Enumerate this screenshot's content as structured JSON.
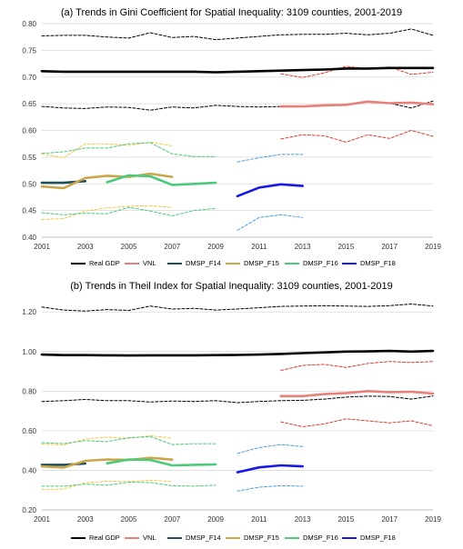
{
  "chart_data": [
    {
      "type": "line",
      "title": "(a) Trends in Gini Coefficient for Spatial Inequality: 3109 counties, 2001-2019",
      "xlabel": "",
      "ylabel": "",
      "x_ticks": [
        "2001",
        "2003",
        "2005",
        "2007",
        "2009",
        "2011",
        "2013",
        "2015",
        "2017",
        "2019"
      ],
      "y_ticks": [
        "0.40",
        "0.45",
        "0.50",
        "0.55",
        "0.60",
        "0.65",
        "0.70",
        "0.75",
        "0.80"
      ],
      "xlim": [
        2001,
        2019
      ],
      "ylim": [
        0.4,
        0.8
      ],
      "grid": "horizontal",
      "legend_position": "bottom",
      "series": [
        {
          "name": "Real GDP",
          "color": "#000000",
          "style": "solid",
          "x": [
            2001,
            2002,
            2003,
            2004,
            2005,
            2006,
            2007,
            2008,
            2009,
            2010,
            2011,
            2012,
            2013,
            2014,
            2015,
            2016,
            2017,
            2018,
            2019
          ],
          "values": [
            0.711,
            0.71,
            0.71,
            0.71,
            0.71,
            0.71,
            0.71,
            0.71,
            0.709,
            0.71,
            0.711,
            0.712,
            0.713,
            0.714,
            0.716,
            0.716,
            0.717,
            0.717,
            0.717
          ]
        },
        {
          "name": "Real GDP upper band",
          "color": "#000000",
          "style": "dashed",
          "x": [
            2001,
            2002,
            2003,
            2004,
            2005,
            2006,
            2007,
            2008,
            2009,
            2010,
            2011,
            2012,
            2013,
            2014,
            2015,
            2016,
            2017,
            2018,
            2019
          ],
          "values": [
            0.777,
            0.778,
            0.778,
            0.775,
            0.773,
            0.783,
            0.774,
            0.776,
            0.77,
            0.773,
            0.776,
            0.779,
            0.78,
            0.78,
            0.782,
            0.779,
            0.782,
            0.79,
            0.778
          ]
        },
        {
          "name": "Real GDP lower band",
          "color": "#000000",
          "style": "dashed",
          "x": [
            2001,
            2002,
            2003,
            2004,
            2005,
            2006,
            2007,
            2008,
            2009,
            2010,
            2011,
            2012,
            2013,
            2014,
            2015,
            2016,
            2017,
            2018,
            2019
          ],
          "values": [
            0.645,
            0.642,
            0.641,
            0.644,
            0.643,
            0.638,
            0.644,
            0.642,
            0.647,
            0.645,
            0.644,
            0.645,
            0.646,
            0.646,
            0.649,
            0.653,
            0.651,
            0.642,
            0.655
          ]
        },
        {
          "name": "VNL",
          "color": "#e8807a",
          "style": "solid",
          "x": [
            2012,
            2013,
            2014,
            2015,
            2016,
            2017,
            2018,
            2019
          ],
          "values": [
            0.645,
            0.645,
            0.647,
            0.648,
            0.654,
            0.651,
            0.652,
            0.649
          ]
        },
        {
          "name": "VNL upper band",
          "color": "#e03b2e",
          "style": "dashed",
          "x": [
            2012,
            2013,
            2014,
            2015,
            2016,
            2017,
            2018,
            2019
          ],
          "values": [
            0.706,
            0.699,
            0.708,
            0.72,
            0.716,
            0.719,
            0.705,
            0.709
          ]
        },
        {
          "name": "VNL lower band",
          "color": "#e03b2e",
          "style": "dashed",
          "x": [
            2012,
            2013,
            2014,
            2015,
            2016,
            2017,
            2018,
            2019
          ],
          "values": [
            0.584,
            0.592,
            0.59,
            0.578,
            0.592,
            0.585,
            0.6,
            0.589
          ]
        },
        {
          "name": "DMSP_F14",
          "color": "#1f4e5c",
          "style": "solid",
          "x": [
            2001,
            2002,
            2003
          ],
          "values": [
            0.502,
            0.502,
            0.505
          ]
        },
        {
          "name": "DMSP_F15",
          "color": "#c9a649",
          "style": "solid",
          "x": [
            2001,
            2002,
            2003,
            2004,
            2005,
            2006,
            2007
          ],
          "values": [
            0.495,
            0.492,
            0.511,
            0.515,
            0.513,
            0.519,
            0.513
          ]
        },
        {
          "name": "DMSP_F15 upper band",
          "color": "#f2c94c",
          "style": "dashed",
          "x": [
            2001,
            2002,
            2003,
            2004,
            2005,
            2006,
            2007
          ],
          "values": [
            0.556,
            0.549,
            0.575,
            0.575,
            0.572,
            0.578,
            0.571
          ]
        },
        {
          "name": "DMSP_F15 lower band",
          "color": "#f2c94c",
          "style": "dashed",
          "x": [
            2001,
            2002,
            2003,
            2004,
            2005,
            2006,
            2007
          ],
          "values": [
            0.433,
            0.435,
            0.449,
            0.455,
            0.458,
            0.459,
            0.456
          ]
        },
        {
          "name": "DMSP_F16",
          "color": "#4cc97a",
          "style": "solid",
          "x": [
            2004,
            2005,
            2006,
            2007,
            2008,
            2009
          ],
          "values": [
            0.503,
            0.516,
            0.514,
            0.498,
            0.5,
            0.502
          ]
        },
        {
          "name": "DMSP_F16 upper band",
          "color": "#4cc97a",
          "style": "dashed",
          "x": [
            2001,
            2002,
            2003,
            2004,
            2005,
            2006,
            2007,
            2008,
            2009
          ],
          "values": [
            0.557,
            0.56,
            0.567,
            0.567,
            0.575,
            0.577,
            0.556,
            0.551,
            0.551
          ]
        },
        {
          "name": "DMSP_F16 lower band",
          "color": "#4cc97a",
          "style": "dashed",
          "x": [
            2001,
            2002,
            2003,
            2004,
            2005,
            2006,
            2007,
            2008,
            2009
          ],
          "values": [
            0.446,
            0.442,
            0.445,
            0.444,
            0.456,
            0.449,
            0.44,
            0.45,
            0.454
          ]
        },
        {
          "name": "DMSP_F18",
          "color": "#1717e6",
          "style": "solid",
          "x": [
            2010,
            2011,
            2012,
            2013
          ],
          "values": [
            0.477,
            0.493,
            0.499,
            0.496
          ]
        },
        {
          "name": "DMSP_F18 upper band",
          "color": "#4a9be8",
          "style": "dashed",
          "x": [
            2010,
            2011,
            2012,
            2013
          ],
          "values": [
            0.541,
            0.549,
            0.555,
            0.555
          ]
        },
        {
          "name": "DMSP_F18 lower band",
          "color": "#4a9be8",
          "style": "dashed",
          "x": [
            2010,
            2011,
            2012,
            2013
          ],
          "values": [
            0.413,
            0.437,
            0.442,
            0.437
          ]
        }
      ]
    },
    {
      "type": "line",
      "title": "(b) Trends in Theil Index for Spatial Inequality: 3109 counties, 2001-2019",
      "xlabel": "",
      "ylabel": "",
      "x_ticks": [
        "2001",
        "2003",
        "2005",
        "2007",
        "2009",
        "2011",
        "2013",
        "2015",
        "2017",
        "2019"
      ],
      "y_ticks": [
        "0.20",
        "0.40",
        "0.60",
        "0.80",
        "1.00",
        "1.20"
      ],
      "xlim": [
        2001,
        2019
      ],
      "ylim": [
        0.2,
        1.27
      ],
      "grid": "horizontal",
      "legend_position": "bottom",
      "series": [
        {
          "name": "Real GDP",
          "color": "#000000",
          "style": "solid",
          "x": [
            2001,
            2002,
            2003,
            2004,
            2005,
            2006,
            2007,
            2008,
            2009,
            2010,
            2011,
            2012,
            2013,
            2014,
            2015,
            2016,
            2017,
            2018,
            2019
          ],
          "values": [
            0.985,
            0.982,
            0.982,
            0.981,
            0.98,
            0.981,
            0.981,
            0.981,
            0.982,
            0.983,
            0.985,
            0.988,
            0.992,
            0.996,
            1.0,
            1.001,
            1.003,
            1.0,
            1.003
          ]
        },
        {
          "name": "Real GDP upper band",
          "color": "#000000",
          "style": "dashed",
          "x": [
            2001,
            2002,
            2003,
            2004,
            2005,
            2006,
            2007,
            2008,
            2009,
            2010,
            2011,
            2012,
            2013,
            2014,
            2015,
            2016,
            2017,
            2018,
            2019
          ],
          "values": [
            1.225,
            1.21,
            1.205,
            1.212,
            1.208,
            1.23,
            1.215,
            1.218,
            1.21,
            1.215,
            1.222,
            1.228,
            1.23,
            1.232,
            1.23,
            1.228,
            1.232,
            1.24,
            1.23
          ]
        },
        {
          "name": "Real GDP lower band",
          "color": "#000000",
          "style": "dashed",
          "x": [
            2001,
            2002,
            2003,
            2004,
            2005,
            2006,
            2007,
            2008,
            2009,
            2010,
            2011,
            2012,
            2013,
            2014,
            2015,
            2016,
            2017,
            2018,
            2019
          ],
          "values": [
            0.748,
            0.752,
            0.758,
            0.752,
            0.752,
            0.745,
            0.75,
            0.748,
            0.752,
            0.742,
            0.748,
            0.752,
            0.754,
            0.76,
            0.77,
            0.775,
            0.773,
            0.76,
            0.776
          ]
        },
        {
          "name": "VNL",
          "color": "#e8807a",
          "style": "solid",
          "x": [
            2012,
            2013,
            2014,
            2015,
            2016,
            2017,
            2018,
            2019
          ],
          "values": [
            0.775,
            0.775,
            0.785,
            0.79,
            0.8,
            0.795,
            0.797,
            0.788
          ]
        },
        {
          "name": "VNL upper band",
          "color": "#e03b2e",
          "style": "dashed",
          "x": [
            2012,
            2013,
            2014,
            2015,
            2016,
            2017,
            2018,
            2019
          ],
          "values": [
            0.905,
            0.93,
            0.935,
            0.92,
            0.94,
            0.95,
            0.945,
            0.95
          ]
        },
        {
          "name": "VNL lower band",
          "color": "#e03b2e",
          "style": "dashed",
          "x": [
            2012,
            2013,
            2014,
            2015,
            2016,
            2017,
            2018,
            2019
          ],
          "values": [
            0.645,
            0.62,
            0.635,
            0.66,
            0.65,
            0.64,
            0.65,
            0.625
          ]
        },
        {
          "name": "DMSP_F14",
          "color": "#1f4e5c",
          "style": "solid",
          "x": [
            2001,
            2002,
            2003
          ],
          "values": [
            0.428,
            0.428,
            0.434
          ]
        },
        {
          "name": "DMSP_F15",
          "color": "#c9a649",
          "style": "solid",
          "x": [
            2001,
            2002,
            2003,
            2004,
            2005,
            2006,
            2007
          ],
          "values": [
            0.42,
            0.414,
            0.448,
            0.455,
            0.452,
            0.463,
            0.454
          ]
        },
        {
          "name": "DMSP_F15 upper band",
          "color": "#f2c94c",
          "style": "dashed",
          "x": [
            2001,
            2002,
            2003,
            2004,
            2005,
            2006,
            2007
          ],
          "values": [
            0.533,
            0.528,
            0.558,
            0.568,
            0.562,
            0.575,
            0.562
          ]
        },
        {
          "name": "DMSP_F15 lower band",
          "color": "#f2c94c",
          "style": "dashed",
          "x": [
            2001,
            2002,
            2003,
            2004,
            2005,
            2006,
            2007
          ],
          "values": [
            0.303,
            0.305,
            0.337,
            0.345,
            0.343,
            0.35,
            0.343
          ]
        },
        {
          "name": "DMSP_F16",
          "color": "#4cc97a",
          "style": "solid",
          "x": [
            2004,
            2005,
            2006,
            2007,
            2008,
            2009
          ],
          "values": [
            0.435,
            0.455,
            0.452,
            0.425,
            0.428,
            0.43
          ]
        },
        {
          "name": "DMSP_F16 upper band",
          "color": "#4cc97a",
          "style": "dashed",
          "x": [
            2001,
            2002,
            2003,
            2004,
            2005,
            2006,
            2007,
            2008,
            2009
          ],
          "values": [
            0.54,
            0.535,
            0.55,
            0.545,
            0.565,
            0.57,
            0.53,
            0.535,
            0.535
          ]
        },
        {
          "name": "DMSP_F16 lower band",
          "color": "#4cc97a",
          "style": "dashed",
          "x": [
            2001,
            2002,
            2003,
            2004,
            2005,
            2006,
            2007,
            2008,
            2009
          ],
          "values": [
            0.32,
            0.32,
            0.33,
            0.325,
            0.34,
            0.338,
            0.322,
            0.32,
            0.325
          ]
        },
        {
          "name": "DMSP_F18",
          "color": "#1717e6",
          "style": "solid",
          "x": [
            2010,
            2011,
            2012,
            2013
          ],
          "values": [
            0.39,
            0.415,
            0.425,
            0.42
          ]
        },
        {
          "name": "DMSP_F18 upper band",
          "color": "#4a9be8",
          "style": "dashed",
          "x": [
            2010,
            2011,
            2012,
            2013
          ],
          "values": [
            0.485,
            0.515,
            0.53,
            0.52
          ]
        },
        {
          "name": "DMSP_F18 lower band",
          "color": "#4a9be8",
          "style": "dashed",
          "x": [
            2010,
            2011,
            2012,
            2013
          ],
          "values": [
            0.295,
            0.315,
            0.322,
            0.32
          ]
        }
      ]
    }
  ],
  "legend": [
    {
      "name": "Real GDP",
      "color": "#000000"
    },
    {
      "name": "VNL",
      "color": "#e8807a"
    },
    {
      "name": "DMSP_F14",
      "color": "#1f4e5c"
    },
    {
      "name": "DMSP_F15",
      "color": "#c9a649"
    },
    {
      "name": "DMSP_F16",
      "color": "#4cc97a"
    },
    {
      "name": "DMSP_F18",
      "color": "#1717e6"
    }
  ]
}
